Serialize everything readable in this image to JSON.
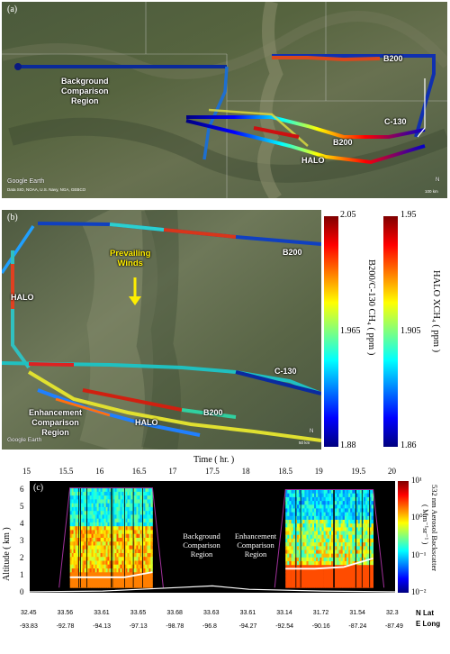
{
  "panel_a": {
    "label": "(a)",
    "labels": {
      "background_region": "Background\nComparison\nRegion",
      "b200_top": "B200",
      "c130": "C-130",
      "b200_mid": "B200",
      "halo": "HALO"
    },
    "google_earth": "Google Earth",
    "data_credit": "Data SIO, NOAA, U.S. Navy, NGA, GEBCO",
    "scale_text": "100 km",
    "north": "N"
  },
  "panel_b": {
    "label": "(b)",
    "labels": {
      "b200_top": "B200",
      "prevailing_winds": "Prevailing\nWinds",
      "halo_left": "HALO",
      "c130": "C-130",
      "enhancement_region": "Enhancement\nComparison\nRegion",
      "b200_mid": "B200",
      "halo_bottom": "HALO"
    },
    "google_earth": "Google Earth",
    "scale_text": "50 km",
    "north": "N"
  },
  "colorbar_b200": {
    "title": "B200/C-130 CH₄ ( ppm )",
    "ticks": [
      "2.05",
      "1.965",
      "1.88"
    ]
  },
  "colorbar_halo": {
    "title": "HALO XCH₄ ( ppm )",
    "ticks": [
      "1.95",
      "1.905",
      "1.86"
    ]
  },
  "colors": {
    "jet": [
      "#00007f",
      "#0000ff",
      "#007fff",
      "#00ffff",
      "#7fff7f",
      "#ffff00",
      "#ff7f00",
      "#ff0000",
      "#7f0000"
    ],
    "curtain_outline": "#a0309a",
    "ground_line": "#ffffff"
  },
  "panel_c": {
    "label": "(c)",
    "time_axis_title": "Time ( hr. )",
    "time_ticks": [
      "15",
      "15.5",
      "16",
      "16.5",
      "17",
      "17.5",
      "18",
      "18.5",
      "19",
      "19.5",
      "20"
    ],
    "altitude_axis_title": "Altitude ( km )",
    "altitude_ticks": [
      "6",
      "5",
      "4",
      "3",
      "2",
      "1",
      "0"
    ],
    "annotation_background": "Background\nComparison\nRegion",
    "annotation_enhancement": "Enhancement\nComparison\nRegion",
    "cbar_title": "532 nm Aerosol Backscatter",
    "cbar_units": "( Mm⁻¹sr⁻¹ )",
    "cbar_ticks": [
      "10¹",
      "10⁰",
      "10⁻¹",
      "10⁻²"
    ],
    "lat_ticks": [
      "32.45",
      "33.56",
      "33.61",
      "33.65",
      "33.68",
      "33.63",
      "33.61",
      "33.14",
      "31.72",
      "31.54",
      "32.3"
    ],
    "lon_ticks": [
      "-93.83",
      "-92.78",
      "-94.13",
      "-97.13",
      "-98.78",
      "-96.8",
      "-94.27",
      "-92.54",
      "-90.16",
      "-87.24",
      "-87.49"
    ],
    "lat_label": "N Lat",
    "lon_label": "E Long"
  },
  "chart_data": {
    "type": "heatmap",
    "title": "",
    "xlabel": "Time ( hr. )",
    "ylabel": "Altitude ( km )",
    "xlim": [
      15,
      20
    ],
    "ylim": [
      0,
      6.5
    ],
    "colorbar": "532 nm Aerosol Backscatter ( Mm⁻¹sr⁻¹ )",
    "clim_log10": [
      -2,
      1
    ],
    "curtain_segments": [
      {
        "t_start": 15.55,
        "t_end": 16.68,
        "top_km": 6.1
      },
      {
        "t_start": 18.5,
        "t_end": 19.7,
        "top_km": 6.0
      }
    ],
    "boundary_layer_height": [
      {
        "t": 15.55,
        "km": 0.9
      },
      {
        "t": 15.9,
        "km": 0.9
      },
      {
        "t": 16.3,
        "km": 0.9
      },
      {
        "t": 16.68,
        "km": 1.2
      },
      {
        "t": 18.5,
        "km": 1.4
      },
      {
        "t": 18.9,
        "km": 1.4
      },
      {
        "t": 19.3,
        "km": 1.5
      },
      {
        "t": 19.7,
        "km": 2.0
      }
    ],
    "ground_height": [
      {
        "t": 15.0,
        "km": 0.05
      },
      {
        "t": 16.0,
        "km": 0.1
      },
      {
        "t": 17.0,
        "km": 0.3
      },
      {
        "t": 17.5,
        "km": 0.4
      },
      {
        "t": 18.0,
        "km": 0.2
      },
      {
        "t": 19.0,
        "km": 0.1
      },
      {
        "t": 20.0,
        "km": 0.05
      }
    ]
  }
}
